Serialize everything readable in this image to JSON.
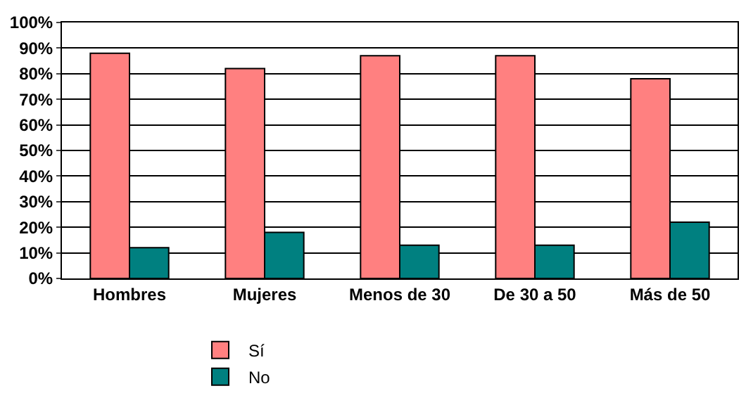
{
  "chart_data": {
    "type": "bar",
    "categories": [
      "Hombres",
      "Mujeres",
      "Menos de 30",
      "De 30 a 50",
      "Más de 50"
    ],
    "series": [
      {
        "name": "Sí",
        "color": "#ff8080",
        "values": [
          88,
          82,
          87,
          87,
          78
        ]
      },
      {
        "name": "No",
        "color": "#008080",
        "values": [
          12,
          18,
          13,
          13,
          22
        ]
      }
    ],
    "ylim": [
      0,
      100
    ],
    "yticks": [
      {
        "value": 0,
        "label": "0%"
      },
      {
        "value": 10,
        "label": "10%"
      },
      {
        "value": 20,
        "label": "20%"
      },
      {
        "value": 30,
        "label": "30%"
      },
      {
        "value": 40,
        "label": "40%"
      },
      {
        "value": 50,
        "label": "50%"
      },
      {
        "value": 60,
        "label": "60%"
      },
      {
        "value": 70,
        "label": "70%"
      },
      {
        "value": 80,
        "label": "80%"
      },
      {
        "value": 90,
        "label": "90%"
      },
      {
        "value": 100,
        "label": "100%"
      }
    ],
    "grid": "y",
    "legend": "bottom"
  }
}
